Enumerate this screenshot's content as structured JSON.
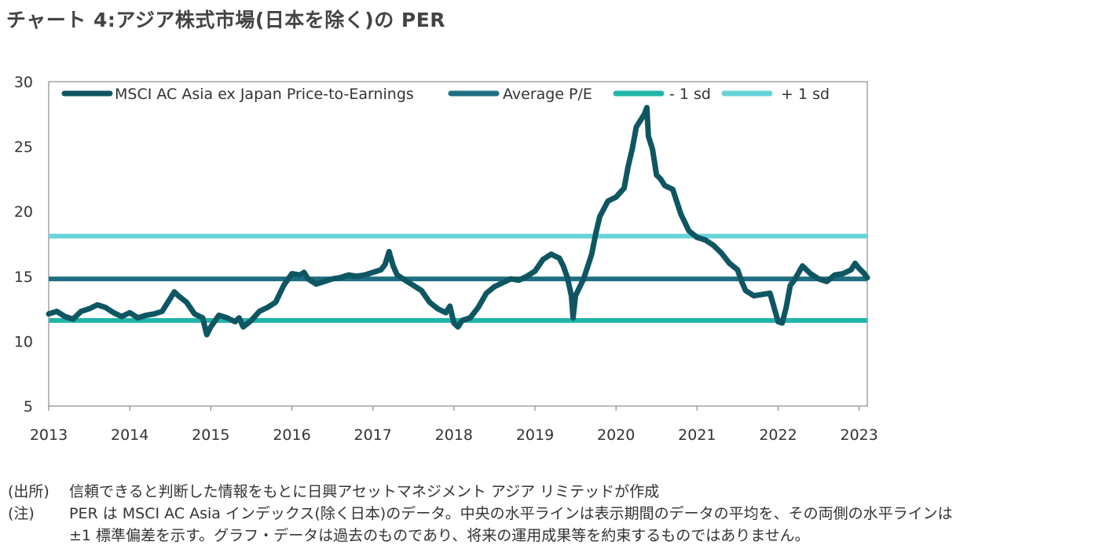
{
  "title": "チャート 4:アジア株式市場(日本を除く)の PER",
  "chart_data": {
    "type": "line",
    "title": "",
    "xlabel": "",
    "ylabel": "",
    "ylim": [
      5,
      30
    ],
    "yticks": [
      5,
      10,
      15,
      20,
      25,
      30
    ],
    "xlim": [
      2013.0,
      2023.1
    ],
    "xticks": [
      2013,
      2014,
      2015,
      2016,
      2017,
      2018,
      2019,
      2020,
      2021,
      2022,
      2023
    ],
    "grid": false,
    "legend_position": "top",
    "legend": [
      "MSCI AC Asia ex Japan Price-to-Earnings",
      "Average P/E",
      "- 1 sd",
      "+ 1 sd"
    ],
    "series": [
      {
        "name": "MSCI AC Asia ex Japan Price-to-Earnings",
        "color": "#0f5663",
        "x": [
          2013.0,
          2013.1,
          2013.2,
          2013.3,
          2013.4,
          2013.5,
          2013.6,
          2013.7,
          2013.8,
          2013.9,
          2014.0,
          2014.1,
          2014.2,
          2014.3,
          2014.4,
          2014.5,
          2014.55,
          2014.6,
          2014.7,
          2014.8,
          2014.9,
          2014.95,
          2015.0,
          2015.1,
          2015.2,
          2015.3,
          2015.35,
          2015.4,
          2015.5,
          2015.6,
          2015.7,
          2015.8,
          2015.9,
          2016.0,
          2016.1,
          2016.15,
          2016.2,
          2016.3,
          2016.4,
          2016.5,
          2016.6,
          2016.7,
          2016.8,
          2016.9,
          2017.0,
          2017.1,
          2017.15,
          2017.2,
          2017.25,
          2017.3,
          2017.4,
          2017.5,
          2017.6,
          2017.7,
          2017.8,
          2017.9,
          2017.95,
          2018.0,
          2018.05,
          2018.1,
          2018.2,
          2018.3,
          2018.4,
          2018.5,
          2018.6,
          2018.7,
          2018.8,
          2018.9,
          2019.0,
          2019.1,
          2019.2,
          2019.3,
          2019.35,
          2019.4,
          2019.45,
          2019.47,
          2019.5,
          2019.6,
          2019.7,
          2019.75,
          2019.8,
          2019.9,
          2020.0,
          2020.1,
          2020.15,
          2020.2,
          2020.25,
          2020.3,
          2020.35,
          2020.38,
          2020.4,
          2020.45,
          2020.5,
          2020.55,
          2020.6,
          2020.7,
          2020.8,
          2020.9,
          2021.0,
          2021.1,
          2021.2,
          2021.3,
          2021.4,
          2021.5,
          2021.55,
          2021.6,
          2021.7,
          2021.8,
          2021.9,
          2021.95,
          2022.0,
          2022.05,
          2022.1,
          2022.15,
          2022.2,
          2022.3,
          2022.4,
          2022.5,
          2022.6,
          2022.7,
          2022.8,
          2022.9,
          2022.95,
          2023.0,
          2023.05,
          2023.1
        ],
        "values": [
          12.1,
          12.3,
          11.9,
          11.7,
          12.3,
          12.5,
          12.8,
          12.6,
          12.2,
          11.9,
          12.2,
          11.8,
          12.0,
          12.1,
          12.3,
          13.3,
          13.8,
          13.5,
          13.0,
          12.1,
          11.8,
          10.5,
          11.1,
          12.0,
          11.8,
          11.5,
          11.8,
          11.1,
          11.6,
          12.3,
          12.6,
          13.0,
          14.3,
          15.2,
          15.1,
          15.3,
          14.8,
          14.4,
          14.6,
          14.8,
          14.9,
          15.1,
          15.0,
          15.1,
          15.3,
          15.5,
          15.9,
          16.9,
          15.8,
          15.1,
          14.7,
          14.3,
          13.9,
          13.0,
          12.5,
          12.2,
          12.7,
          11.4,
          11.1,
          11.6,
          11.8,
          12.6,
          13.7,
          14.2,
          14.5,
          14.8,
          14.7,
          15.0,
          15.4,
          16.3,
          16.7,
          16.4,
          15.8,
          14.9,
          13.5,
          11.8,
          13.5,
          14.8,
          16.7,
          18.3,
          19.6,
          20.8,
          21.1,
          21.8,
          23.5,
          24.8,
          26.5,
          27.0,
          27.5,
          28.0,
          25.8,
          24.8,
          22.8,
          22.5,
          22.0,
          21.7,
          19.8,
          18.5,
          18.0,
          17.8,
          17.4,
          16.8,
          16.0,
          15.5,
          14.6,
          13.9,
          13.5,
          13.6,
          13.7,
          12.6,
          11.5,
          11.4,
          12.6,
          14.3,
          14.7,
          15.8,
          15.2,
          14.8,
          14.6,
          15.1,
          15.2,
          15.5,
          16.0,
          15.6,
          15.3,
          14.9
        ]
      },
      {
        "name": "Average P/E",
        "color": "#1f6f83",
        "value": 14.8
      },
      {
        "name": "- 1 sd",
        "color": "#21b5a9",
        "value": 11.6
      },
      {
        "name": "+ 1 sd",
        "color": "#67d4d8",
        "value": 18.1
      }
    ]
  },
  "notes": [
    {
      "label": "(出所)",
      "text": "信頼できると判断した情報をもとに日興アセットマネジメント アジア リミテッドが作成"
    },
    {
      "label": "(注)",
      "text": "PER は MSCI AC Asia インデックス(除く日本)のデータ。中央の水平ラインは表示期間のデータの平均を、その両側の水平ラインは"
    },
    {
      "label": "",
      "text": "±1 標準偏差を示す。グラフ・データは過去のものであり、将来の運用成果等を約束するものではありません。"
    }
  ]
}
